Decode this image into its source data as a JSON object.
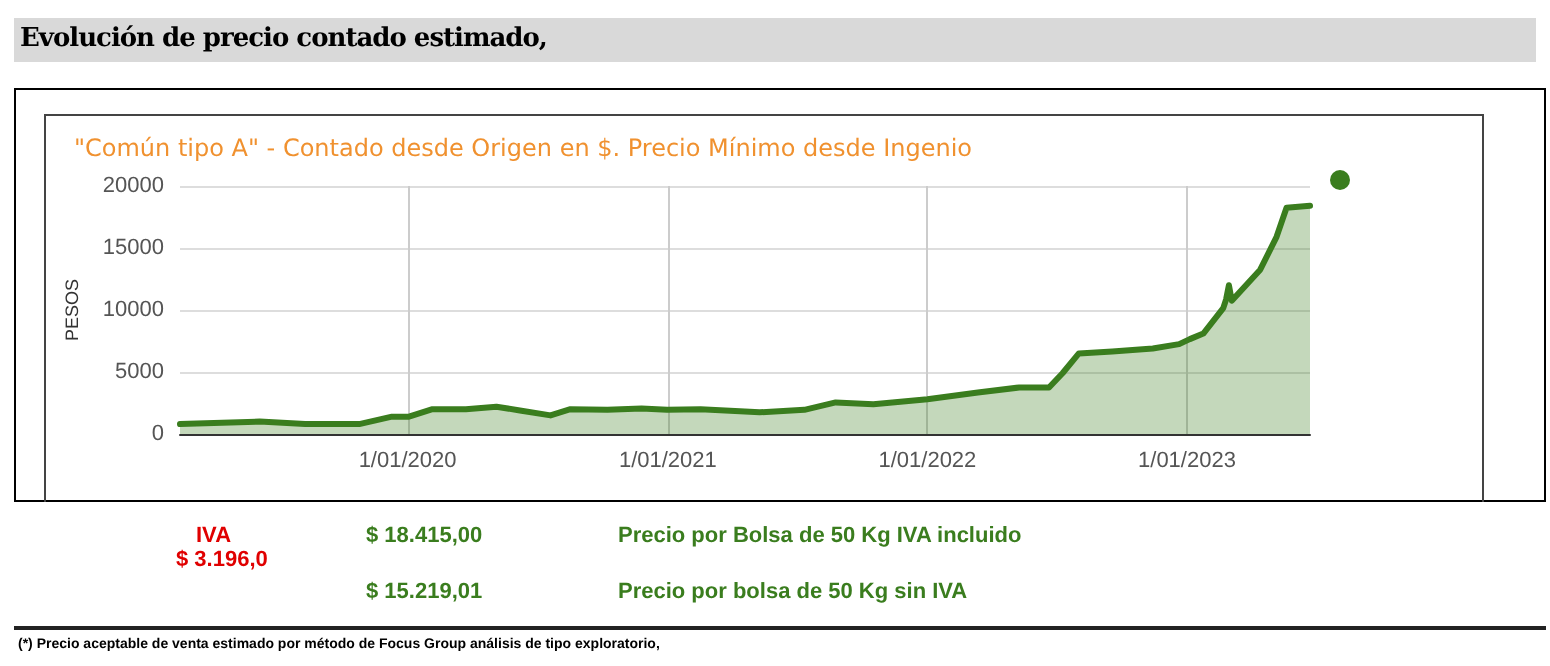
{
  "chart_data": {
    "type": "area",
    "title": "Evolución de precio contado estimado,",
    "subtitle": "\"Común tipo A\" - Contado desde Origen en $. Precio Mínimo desde Ingenio",
    "ylabel": "PESOS",
    "annotations": [
      "IVA",
      "$ 3.196,0",
      "$ 18.415,00",
      "Precio por Bolsa de 50 Kg IVA incluido",
      "$ 15.219,01",
      "Precio por bolsa de 50 Kg sin IVA",
      "(*) Precio aceptable de venta estimado por método de Focus Group análisis de tipo exploratorio,"
    ],
    "x": [
      "2019-02-15",
      "2019-06-07",
      "2019-08-10",
      "2019-10-25",
      "2019-12-10",
      "2020-01-03",
      "2020-02-05",
      "2020-03-23",
      "2020-05-05",
      "2020-06-07",
      "2020-07-20",
      "2020-08-17",
      "2020-10-08",
      "2020-11-25",
      "2020-12-31",
      "2021-02-16",
      "2021-05-10",
      "2021-07-12",
      "2021-08-25",
      "2021-10-17",
      "2022-01-01",
      "2022-03-13",
      "2022-05-10",
      "2022-06-21",
      "2022-07-10",
      "2022-08-02",
      "2022-09-18",
      "2022-11-14",
      "2022-12-21",
      "2023-01-05",
      "2023-01-24",
      "2023-02-21",
      "2023-02-25",
      "2023-03-01",
      "2023-03-05",
      "2023-04-14",
      "2023-05-07",
      "2023-05-21",
      "2023-06-23"
    ],
    "series": [
      {
        "color": "#3a7d1e",
        "values": [
          800,
          1000,
          800,
          800,
          1400,
          1400,
          2000,
          2000,
          2200,
          1900,
          1500,
          2000,
          1950,
          2050,
          1950,
          2000,
          1750,
          1950,
          2550,
          2400,
          2800,
          3350,
          3750,
          3750,
          4900,
          6500,
          6650,
          6900,
          7250,
          7650,
          8100,
          10150,
          10850,
          12000,
          10750,
          13250,
          15900,
          18250,
          18400
        ]
      }
    ],
    "xlim": [
      "2019-02-15",
      "2023-06-23"
    ],
    "xticks": [
      {
        "value": "2020-01-01",
        "label": "1/01/2020"
      },
      {
        "value": "2021-01-01",
        "label": "1/01/2021"
      },
      {
        "value": "2022-01-01",
        "label": "1/01/2022"
      },
      {
        "value": "2023-01-01",
        "label": "1/01/2023"
      }
    ],
    "ylim": [
      0,
      20000
    ],
    "yticks": [
      0,
      5000,
      10000,
      15000,
      20000
    ],
    "grid": true
  }
}
